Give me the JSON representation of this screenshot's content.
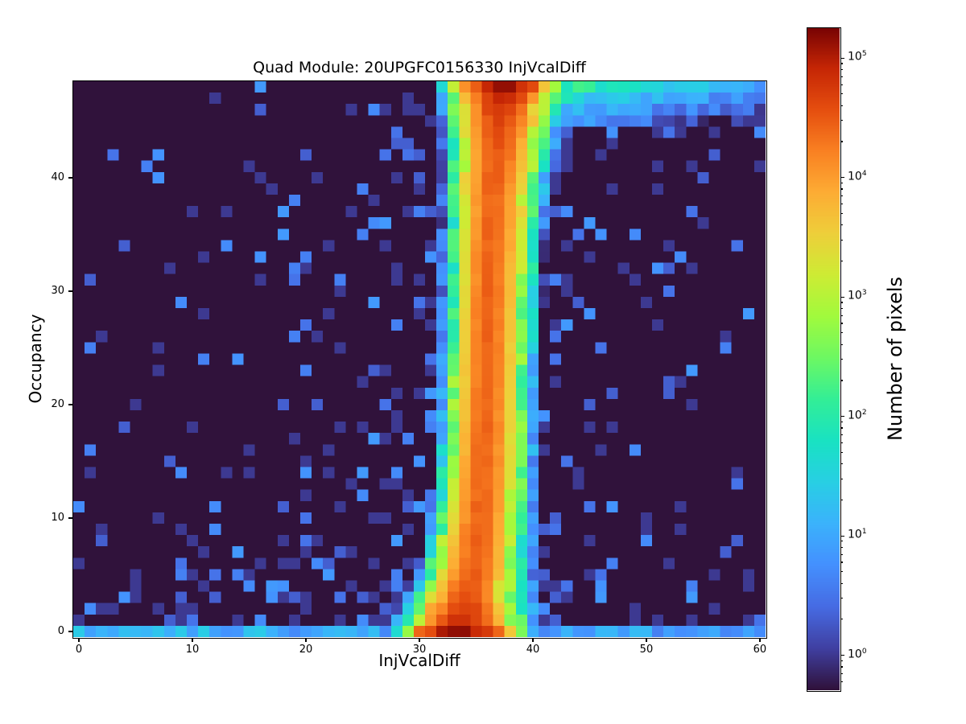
{
  "figure": {
    "title": "Quad Module: 20UPGFC0156330 InjVcalDiff",
    "background": "#ffffff"
  },
  "axes": {
    "x": {
      "label": "InjVcalDiff",
      "ticks": [
        0,
        10,
        20,
        30,
        40,
        50,
        60
      ],
      "range": [
        -0.5,
        60.5
      ]
    },
    "y": {
      "label": "Occupancy",
      "ticks": [
        0,
        10,
        20,
        30,
        40
      ],
      "range": [
        -0.5,
        48.5
      ]
    }
  },
  "colorbar": {
    "label": "Number of pixels",
    "scale": "log",
    "tick_exponents": [
      0,
      1,
      2,
      3,
      4,
      5
    ],
    "vmin": 0.51,
    "vmax": 178000
  },
  "chart_data": {
    "type": "heatmap",
    "title": "Quad Module: 20UPGFC0156330 InjVcalDiff",
    "xlabel": "InjVcalDiff",
    "ylabel": "Occupancy",
    "zlabel": "Number of pixels",
    "nx": 61,
    "ny": 49,
    "x_edges": [
      -0.5,
      60.5
    ],
    "y_edges": [
      -0.5,
      48.5
    ],
    "grid": false,
    "legend": null,
    "norm": {
      "type": "log",
      "vmin": 0.51,
      "vmax": 178000
    },
    "background_count": 0,
    "colormap": {
      "name": "turbo",
      "stops": [
        [
          0.0,
          "#30123b"
        ],
        [
          0.063,
          "#4040a2"
        ],
        [
          0.125,
          "#466be3"
        ],
        [
          0.188,
          "#4490fe"
        ],
        [
          0.251,
          "#3bb2fc"
        ],
        [
          0.314,
          "#28cfe4"
        ],
        [
          0.376,
          "#19e2c3"
        ],
        [
          0.439,
          "#33ee97"
        ],
        [
          0.502,
          "#6df863"
        ],
        [
          0.565,
          "#a1fa3d"
        ],
        [
          0.627,
          "#cdec34"
        ],
        [
          0.69,
          "#eecf3a"
        ],
        [
          0.753,
          "#fdac34"
        ],
        [
          0.816,
          "#f98022"
        ],
        [
          0.878,
          "#e54e0f"
        ],
        [
          0.941,
          "#c52605"
        ],
        [
          1.0,
          "#7a0403"
        ]
      ]
    },
    "band": {
      "description": "dominant vertical ridge: count ~ 10^logA * gauss(x-center), center drifts right with occupancy",
      "center": {
        "base": 33.3,
        "rise_amp": 2.6,
        "rise_tau": 7,
        "top_amp": 1.4,
        "top_pow": 4
      },
      "log_peak": {
        "base": 4.42,
        "bottom_amp": 0.76,
        "bottom_tau": 2.0,
        "top_amp": 0.72,
        "top_tau": 2.8
      },
      "sigma_left": {
        "base": 0.95,
        "bottom_amp": 0.45,
        "bottom_tau": 6,
        "top_amp": 0.35,
        "top_tau": 6
      },
      "sigma_right": {
        "base": 1.05,
        "bottom_amp": 0.55,
        "bottom_tau": 5,
        "top_amp": 0.45,
        "top_tau": 6
      },
      "edge_jitter_decades": 0.45,
      "core_jitter_decades": 0.06,
      "visibility_threshold": 0.7
    },
    "bottom_row": {
      "base": 7,
      "amp": 9,
      "tau": 22,
      "jitter_decades": 0.35
    },
    "top_right_tail": {
      "amp": 220,
      "row_tau": 1.1,
      "x_tau": 7.5,
      "min_row": 45,
      "jitter_decades": 0.3
    },
    "scatter": {
      "seed": 20156330,
      "left": {
        "base": 0.02,
        "x_coef": 0.0035,
        "bottom_amp": 0.28,
        "bottom_tau": 6.5
      },
      "right": {
        "base": 0.02,
        "x_coef": 0.0032,
        "top_amp": 0.22,
        "top_tau": 7,
        "bottom_amp": 0.3,
        "bottom_tau": 3.5
      },
      "band_prox": {
        "amp": 0.35,
        "tau": 2.5,
        "offset": 3.5
      },
      "max_prob": 0.6,
      "count_min": 1,
      "count_spread": 7
    }
  }
}
